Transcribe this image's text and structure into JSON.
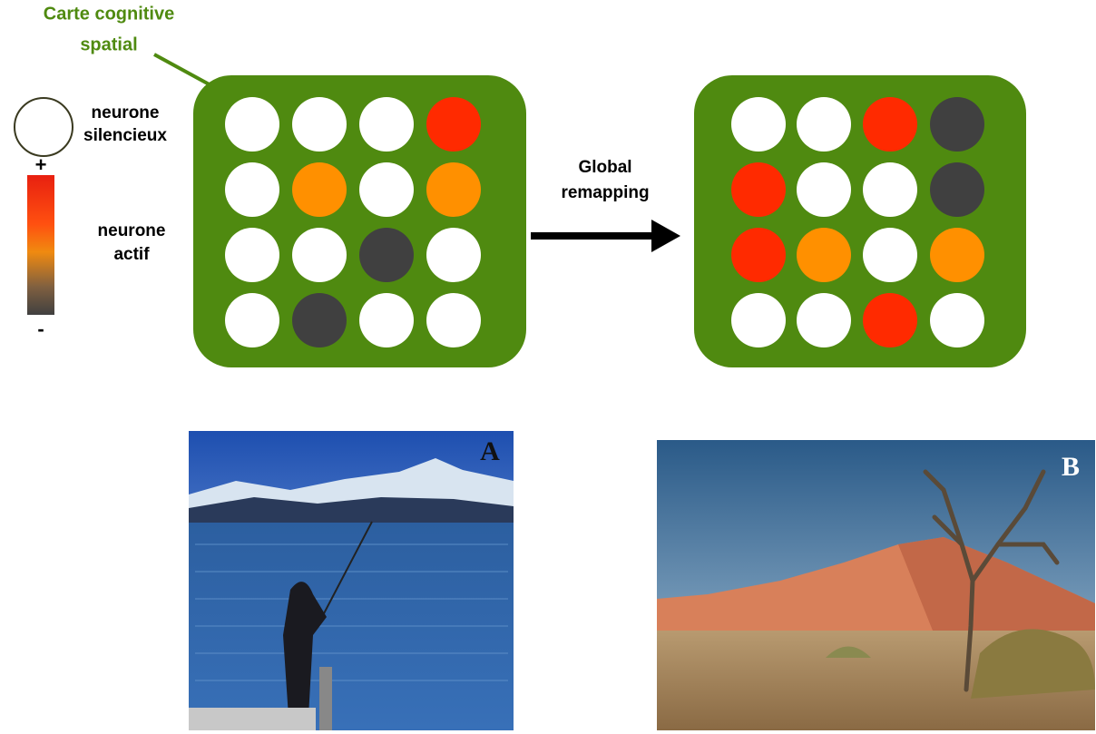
{
  "diagram": {
    "map_label": [
      "Carte cognitive",
      "spatial"
    ],
    "silent_label": [
      "neurone",
      "silencieux"
    ],
    "scale_plus": "+",
    "scale_minus": "-",
    "active_label": [
      "neurone",
      "actif"
    ],
    "arrow_label": [
      "Global",
      "remapping"
    ],
    "photos": [
      {
        "label": "A"
      },
      {
        "label": "B"
      }
    ]
  }
}
